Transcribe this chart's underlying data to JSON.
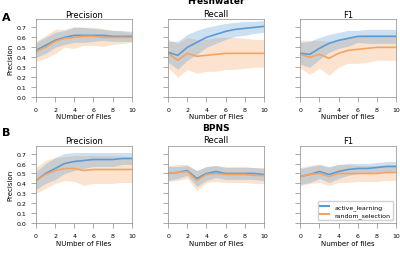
{
  "x": [
    0,
    1,
    2,
    3,
    4,
    5,
    6,
    7,
    8,
    9,
    10
  ],
  "freshwater": {
    "precision": {
      "al_mean": [
        0.47,
        0.52,
        0.57,
        0.6,
        0.62,
        0.62,
        0.62,
        0.62,
        0.61,
        0.61,
        0.61
      ],
      "al_upper": [
        0.55,
        0.6,
        0.65,
        0.67,
        0.7,
        0.7,
        0.69,
        0.68,
        0.67,
        0.67,
        0.66
      ],
      "al_lower": [
        0.4,
        0.44,
        0.5,
        0.53,
        0.55,
        0.55,
        0.56,
        0.57,
        0.56,
        0.56,
        0.56
      ],
      "rs_mean": [
        0.46,
        0.5,
        0.56,
        0.59,
        0.6,
        0.61,
        0.61,
        0.6,
        0.6,
        0.6,
        0.6
      ],
      "rs_upper": [
        0.56,
        0.62,
        0.68,
        0.68,
        0.71,
        0.7,
        0.7,
        0.69,
        0.67,
        0.66,
        0.65
      ],
      "rs_lower": [
        0.36,
        0.39,
        0.44,
        0.5,
        0.49,
        0.52,
        0.52,
        0.51,
        0.53,
        0.54,
        0.55
      ]
    },
    "recall": {
      "al_mean": [
        0.45,
        0.42,
        0.5,
        0.55,
        0.6,
        0.63,
        0.66,
        0.68,
        0.69,
        0.7,
        0.71
      ],
      "al_upper": [
        0.56,
        0.56,
        0.63,
        0.67,
        0.7,
        0.72,
        0.74,
        0.75,
        0.76,
        0.76,
        0.77
      ],
      "al_lower": [
        0.35,
        0.28,
        0.37,
        0.43,
        0.5,
        0.54,
        0.58,
        0.61,
        0.62,
        0.64,
        0.65
      ],
      "rs_mean": [
        0.44,
        0.37,
        0.44,
        0.41,
        0.42,
        0.43,
        0.44,
        0.44,
        0.44,
        0.44,
        0.44
      ],
      "rs_upper": [
        0.58,
        0.54,
        0.6,
        0.58,
        0.58,
        0.6,
        0.6,
        0.6,
        0.59,
        0.58,
        0.58
      ],
      "rs_lower": [
        0.3,
        0.2,
        0.28,
        0.24,
        0.26,
        0.26,
        0.28,
        0.28,
        0.29,
        0.3,
        0.3
      ]
    },
    "f1": {
      "al_mean": [
        0.44,
        0.43,
        0.49,
        0.54,
        0.57,
        0.59,
        0.61,
        0.61,
        0.61,
        0.61,
        0.61
      ],
      "al_upper": [
        0.55,
        0.56,
        0.6,
        0.63,
        0.65,
        0.67,
        0.67,
        0.68,
        0.68,
        0.68,
        0.68
      ],
      "al_lower": [
        0.33,
        0.3,
        0.38,
        0.45,
        0.49,
        0.51,
        0.55,
        0.54,
        0.54,
        0.54,
        0.54
      ],
      "rs_mean": [
        0.43,
        0.4,
        0.43,
        0.39,
        0.44,
        0.47,
        0.48,
        0.49,
        0.5,
        0.5,
        0.5
      ],
      "rs_upper": [
        0.57,
        0.57,
        0.57,
        0.56,
        0.58,
        0.6,
        0.62,
        0.63,
        0.63,
        0.63,
        0.63
      ],
      "rs_lower": [
        0.29,
        0.23,
        0.29,
        0.22,
        0.3,
        0.34,
        0.34,
        0.35,
        0.37,
        0.37,
        0.37
      ]
    }
  },
  "bpns": {
    "precision": {
      "al_mean": [
        0.43,
        0.5,
        0.55,
        0.6,
        0.62,
        0.63,
        0.64,
        0.64,
        0.64,
        0.65,
        0.65
      ],
      "al_upper": [
        0.52,
        0.6,
        0.66,
        0.7,
        0.71,
        0.71,
        0.71,
        0.71,
        0.71,
        0.71,
        0.71
      ],
      "al_lower": [
        0.34,
        0.4,
        0.44,
        0.5,
        0.53,
        0.55,
        0.57,
        0.57,
        0.57,
        0.59,
        0.59
      ],
      "rs_mean": [
        0.43,
        0.49,
        0.53,
        0.55,
        0.55,
        0.53,
        0.54,
        0.54,
        0.54,
        0.54,
        0.54
      ],
      "rs_upper": [
        0.56,
        0.63,
        0.66,
        0.67,
        0.68,
        0.68,
        0.68,
        0.68,
        0.68,
        0.67,
        0.67
      ],
      "rs_lower": [
        0.3,
        0.35,
        0.4,
        0.43,
        0.42,
        0.38,
        0.4,
        0.4,
        0.4,
        0.41,
        0.41
      ]
    },
    "recall": {
      "al_mean": [
        0.5,
        0.51,
        0.53,
        0.45,
        0.5,
        0.52,
        0.5,
        0.5,
        0.5,
        0.5,
        0.49
      ],
      "al_upper": [
        0.57,
        0.57,
        0.58,
        0.53,
        0.57,
        0.58,
        0.56,
        0.56,
        0.56,
        0.56,
        0.55
      ],
      "al_lower": [
        0.43,
        0.45,
        0.48,
        0.37,
        0.43,
        0.46,
        0.44,
        0.44,
        0.44,
        0.44,
        0.43
      ],
      "rs_mean": [
        0.5,
        0.51,
        0.52,
        0.43,
        0.49,
        0.5,
        0.49,
        0.49,
        0.49,
        0.48,
        0.48
      ],
      "rs_upper": [
        0.58,
        0.59,
        0.59,
        0.53,
        0.57,
        0.58,
        0.57,
        0.57,
        0.57,
        0.56,
        0.56
      ],
      "rs_lower": [
        0.42,
        0.43,
        0.45,
        0.33,
        0.41,
        0.42,
        0.41,
        0.41,
        0.41,
        0.4,
        0.4
      ]
    },
    "f1": {
      "al_mean": [
        0.47,
        0.49,
        0.52,
        0.49,
        0.52,
        0.54,
        0.55,
        0.55,
        0.56,
        0.57,
        0.57
      ],
      "al_upper": [
        0.55,
        0.57,
        0.59,
        0.57,
        0.59,
        0.6,
        0.6,
        0.6,
        0.61,
        0.62,
        0.62
      ],
      "al_lower": [
        0.39,
        0.41,
        0.45,
        0.41,
        0.45,
        0.48,
        0.5,
        0.5,
        0.51,
        0.52,
        0.52
      ],
      "rs_mean": [
        0.47,
        0.49,
        0.5,
        0.47,
        0.5,
        0.5,
        0.5,
        0.5,
        0.5,
        0.51,
        0.51
      ],
      "rs_upper": [
        0.56,
        0.58,
        0.59,
        0.56,
        0.59,
        0.59,
        0.58,
        0.58,
        0.58,
        0.59,
        0.59
      ],
      "rs_lower": [
        0.38,
        0.4,
        0.41,
        0.38,
        0.41,
        0.41,
        0.42,
        0.42,
        0.42,
        0.43,
        0.43
      ]
    }
  },
  "al_color": "#5B9BD5",
  "rs_color": "#F4A460",
  "al_alpha": 0.3,
  "rs_alpha": 0.3,
  "al_label": "active_learning",
  "rs_label": "random_selection",
  "row_letters": [
    "A",
    "B"
  ],
  "dataset_labels": [
    "Freshwater",
    "BPNS"
  ],
  "col_titles": [
    "Precision",
    "Recall",
    "F1"
  ],
  "ylabel": "Precision",
  "xlabels": [
    "NUmber of Files",
    "Number of Files",
    "Number of files"
  ],
  "xticks": [
    0,
    2,
    4,
    6,
    8,
    10
  ],
  "yticks": [
    0.0,
    0.1,
    0.2,
    0.3,
    0.4,
    0.5,
    0.6,
    0.7
  ],
  "ylim": [
    0.0,
    0.78
  ],
  "figsize": [
    4.0,
    2.55
  ],
  "dpi": 100
}
